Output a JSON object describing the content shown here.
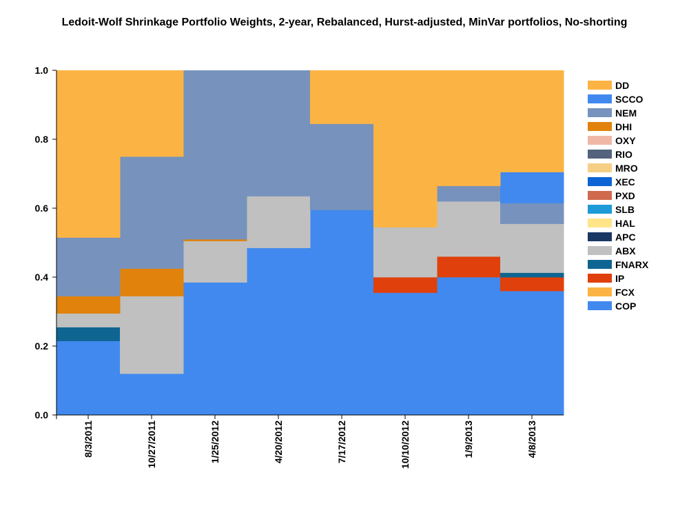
{
  "chart_data": {
    "type": "area",
    "stacking": "stacked step",
    "title": "Ledoit-Wolf Shrinkage Portfolio Weights, 2-year, Rebalanced, Hurst-adjusted, MinVar portfolios, No-shorting",
    "xlabel": "",
    "ylabel": "",
    "ylim": [
      0,
      1
    ],
    "y_ticks": [
      "0.0",
      "0.2",
      "0.4",
      "0.6",
      "0.8",
      "1.0"
    ],
    "categories": [
      "8/3/2011",
      "10/27/2011",
      "1/25/2012",
      "4/20/2012",
      "7/17/2012",
      "10/10/2012",
      "1/9/2013",
      "4/8/2013"
    ],
    "grid": false,
    "legend_position": "right",
    "legend": [
      "DD",
      "SCCO",
      "NEM",
      "DHI",
      "OXY",
      "RIO",
      "MRO",
      "XEC",
      "PXD",
      "SLB",
      "HAL",
      "APC",
      "ABX",
      "FNARX",
      "IP",
      "FCX",
      "COP"
    ],
    "series": [
      {
        "name": "COP",
        "color": "#4189ee",
        "values": [
          0.215,
          0.12,
          0.385,
          0.485,
          0.595,
          0.355,
          0.4,
          0.36
        ]
      },
      {
        "name": "FCX",
        "color": "#fbb444",
        "values": [
          0,
          0,
          0,
          0,
          0,
          0,
          0,
          0
        ]
      },
      {
        "name": "IP",
        "color": "#e0400c",
        "values": [
          0,
          0,
          0,
          0,
          0,
          0.045,
          0.06,
          0.04
        ]
      },
      {
        "name": "FNARX",
        "color": "#0e6591",
        "values": [
          0.04,
          0,
          0,
          0,
          0,
          0,
          0,
          0.013
        ]
      },
      {
        "name": "ABX",
        "color": "#c0c0c0",
        "values": [
          0.04,
          0.225,
          0.12,
          0.15,
          0,
          0.145,
          0.16,
          0.142
        ]
      },
      {
        "name": "APC",
        "color": "#1a3764",
        "values": [
          0,
          0,
          0,
          0,
          0,
          0,
          0,
          0
        ]
      },
      {
        "name": "HAL",
        "color": "#ffe48a",
        "values": [
          0,
          0,
          0,
          0,
          0,
          0,
          0,
          0
        ]
      },
      {
        "name": "SLB",
        "color": "#1e9ad8",
        "values": [
          0,
          0,
          0,
          0,
          0,
          0,
          0,
          0
        ]
      },
      {
        "name": "PXD",
        "color": "#d06a4e",
        "values": [
          0,
          0,
          0,
          0,
          0,
          0,
          0,
          0
        ]
      },
      {
        "name": "XEC",
        "color": "#0d64d5",
        "values": [
          0,
          0,
          0,
          0,
          0,
          0,
          0,
          0
        ]
      },
      {
        "name": "MRO",
        "color": "#f5cf86",
        "values": [
          0,
          0,
          0,
          0,
          0,
          0,
          0,
          0
        ]
      },
      {
        "name": "RIO",
        "color": "#53627d",
        "values": [
          0,
          0,
          0,
          0,
          0,
          0,
          0,
          0
        ]
      },
      {
        "name": "OXY",
        "color": "#f1b7a6",
        "values": [
          0,
          0,
          0,
          0,
          0,
          0,
          0,
          0
        ]
      },
      {
        "name": "DHI",
        "color": "#e0820c",
        "values": [
          0.05,
          0.08,
          0.005,
          0,
          0,
          0,
          0,
          0
        ]
      },
      {
        "name": "NEM",
        "color": "#7792bd",
        "values": [
          0.17,
          0.325,
          0.49,
          0.365,
          0.25,
          0,
          0.045,
          0.06
        ]
      },
      {
        "name": "SCCO",
        "color": "#4189ee",
        "values": [
          0,
          0,
          0,
          0,
          0,
          0,
          0,
          0.09
        ]
      },
      {
        "name": "DD",
        "color": "#fbb444",
        "values": [
          0.485,
          0.25,
          0,
          0,
          0.155,
          0.455,
          0.335,
          0.295
        ]
      }
    ]
  }
}
